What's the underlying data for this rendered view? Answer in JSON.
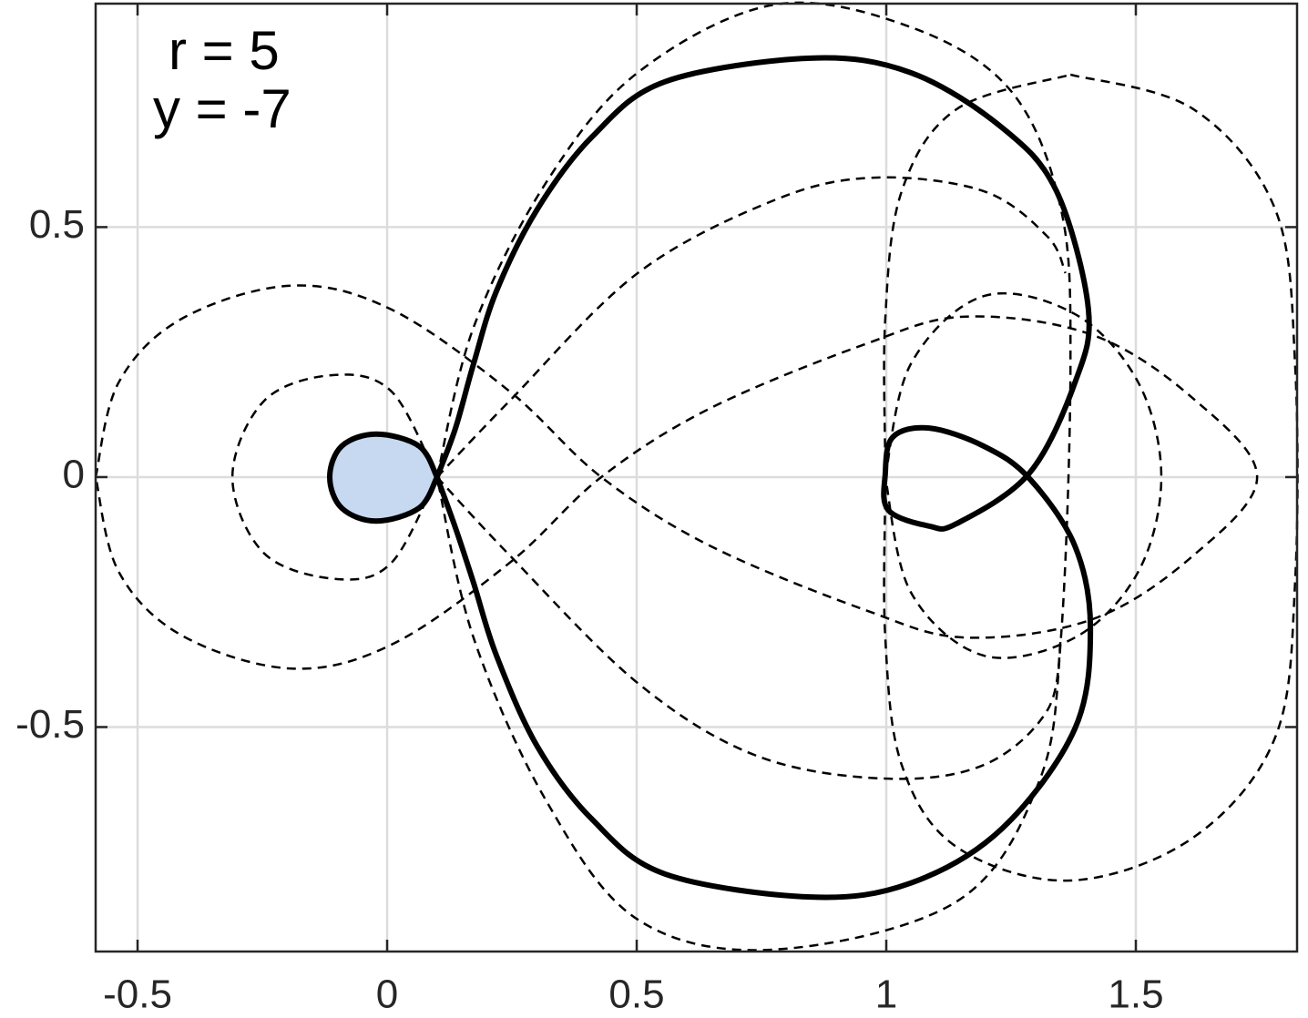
{
  "chart_data": {
    "type": "line",
    "annotations": [
      "r = 5",
      "y = -7"
    ],
    "xlim": [
      -0.584,
      1.823
    ],
    "ylim": [
      -0.949,
      0.947
    ],
    "xticks": [
      -0.5,
      0,
      0.5,
      1,
      1.5
    ],
    "yticks": [
      -0.5,
      0,
      0.5
    ],
    "grid": true,
    "series": [
      {
        "color": "#000000",
        "line_style": "dashed",
        "x": [
          -0.584,
          -0.538,
          -0.411,
          -0.192,
          0.009,
          0.246,
          0.429,
          0.648,
          0.958,
          1.159,
          1.414,
          1.615,
          1.743,
          1.615,
          1.414,
          1.159,
          0.958,
          0.648,
          0.429,
          0.246,
          0.009,
          -0.192,
          -0.411,
          -0.538,
          -0.584
        ],
        "y": [
          0,
          0.189,
          0.317,
          0.383,
          0.335,
          0.171,
          0,
          -0.138,
          -0.266,
          -0.321,
          -0.284,
          -0.157,
          0,
          0.157,
          0.284,
          0.321,
          0.266,
          0.138,
          0,
          -0.171,
          -0.335,
          -0.383,
          -0.317,
          -0.189,
          0
        ]
      },
      {
        "color": "#000000",
        "line_style": "dashed",
        "x": [
          0.1,
          0.009,
          -0.109,
          -0.246,
          -0.31,
          -0.246,
          -0.1,
          0.009,
          0.1
        ],
        "y": [
          0,
          0.171,
          0.204,
          0.153,
          0,
          -0.153,
          -0.204,
          -0.171,
          0
        ]
      },
      {
        "color": "#000000",
        "line_style": "dashed",
        "x": [
          0.1,
          0.246,
          0.502,
          0.776,
          0.976,
          1.195,
          1.323,
          1.359,
          null,
          0.1,
          0.246,
          0.502,
          0.739,
          0.995,
          1.195,
          1.323,
          1.35
        ],
        "y": [
          0,
          0.153,
          0.408,
          0.554,
          0.599,
          0.572,
          0.481,
          0.408,
          null,
          0,
          -0.157,
          -0.412,
          -0.557,
          -0.603,
          -0.576,
          -0.466,
          -0.321
        ]
      },
      {
        "color": "#000000",
        "line_style": "dashed",
        "x": [
          0.1,
          0.173,
          0.319,
          0.502,
          0.776,
          1.049,
          1.25,
          1.35,
          1.369,
          1.35,
          1.305,
          1.141,
          0.776,
          0.502,
          0.319,
          0.173,
          0.1
        ],
        "y": [
          0,
          0.299,
          0.59,
          0.809,
          0.945,
          0.9,
          0.772,
          0.536,
          0.226,
          -0.321,
          -0.612,
          -0.849,
          -0.945,
          -0.885,
          -0.648,
          -0.321,
          0
        ]
      },
      {
        "color": "#000000",
        "line_style": "dashed",
        "x": [
          1.369,
          1.615,
          1.779,
          1.819,
          1.819,
          1.779,
          1.615,
          1.369,
          1.141,
          1.031,
          0.998,
          0.998,
          0.998,
          1.031,
          1.141,
          1.369
        ],
        "y": [
          0.805,
          0.736,
          0.536,
          0.226,
          -0.211,
          -0.521,
          -0.721,
          -0.807,
          -0.74,
          -0.576,
          -0.321,
          0,
          0.317,
          0.572,
          0.736,
          0.805
        ]
      },
      {
        "color": "#000000",
        "line_style": "dashed",
        "x": [
          0.998,
          1.049,
          1.195,
          1.378,
          1.505,
          1.551,
          1.505,
          1.378,
          1.195,
          1.049,
          0.998
        ],
        "y": [
          0,
          0.226,
          0.362,
          0.326,
          0.189,
          0,
          -0.189,
          -0.321,
          -0.357,
          -0.23,
          0
        ]
      },
      {
        "color": "#000000",
        "line_style": "dashed",
        "x": [
          -0.036,
          0.009,
          0.064,
          0.1,
          0.064,
          0.009,
          -0.036
        ],
        "y": [
          0,
          0.044,
          0.035,
          0,
          -0.035,
          -0.044,
          0
        ]
      },
      {
        "color": "#000000",
        "line_style": "solid",
        "x": [
          0.1,
          0.137,
          0.173,
          0.219,
          0.301,
          0.411,
          0.557,
          0.849,
          1.049,
          1.232,
          1.341,
          1.405,
          1.378,
          1.286,
          1.141,
          1.086,
          1.004,
          0.998,
          1.013,
          1.086,
          1.195,
          1.286,
          1.378,
          1.409,
          1.378,
          1.232,
          1.049,
          0.849,
          0.557,
          0.411,
          0.301,
          0.219,
          0.173,
          0.137,
          0.1
        ],
        "y": [
          0,
          0.098,
          0.226,
          0.372,
          0.536,
          0.681,
          0.791,
          0.838,
          0.809,
          0.699,
          0.572,
          0.335,
          0.189,
          0.007,
          -0.093,
          -0.098,
          -0.066,
          0.007,
          0.08,
          0.098,
          0.062,
          -0.002,
          -0.138,
          -0.302,
          -0.503,
          -0.703,
          -0.812,
          -0.84,
          -0.794,
          -0.685,
          -0.539,
          -0.357,
          -0.211,
          -0.102,
          0
        ]
      },
      {
        "color": "#000000",
        "line_style": "solid",
        "fill": "#c6d9f1",
        "x": [
          0.1,
          0.064,
          -0.022,
          -0.091,
          -0.115,
          -0.091,
          -0.022,
          0.064,
          0.1
        ],
        "y": [
          0,
          0.062,
          0.086,
          0.062,
          0,
          -0.062,
          -0.088,
          -0.062,
          0
        ]
      }
    ]
  }
}
